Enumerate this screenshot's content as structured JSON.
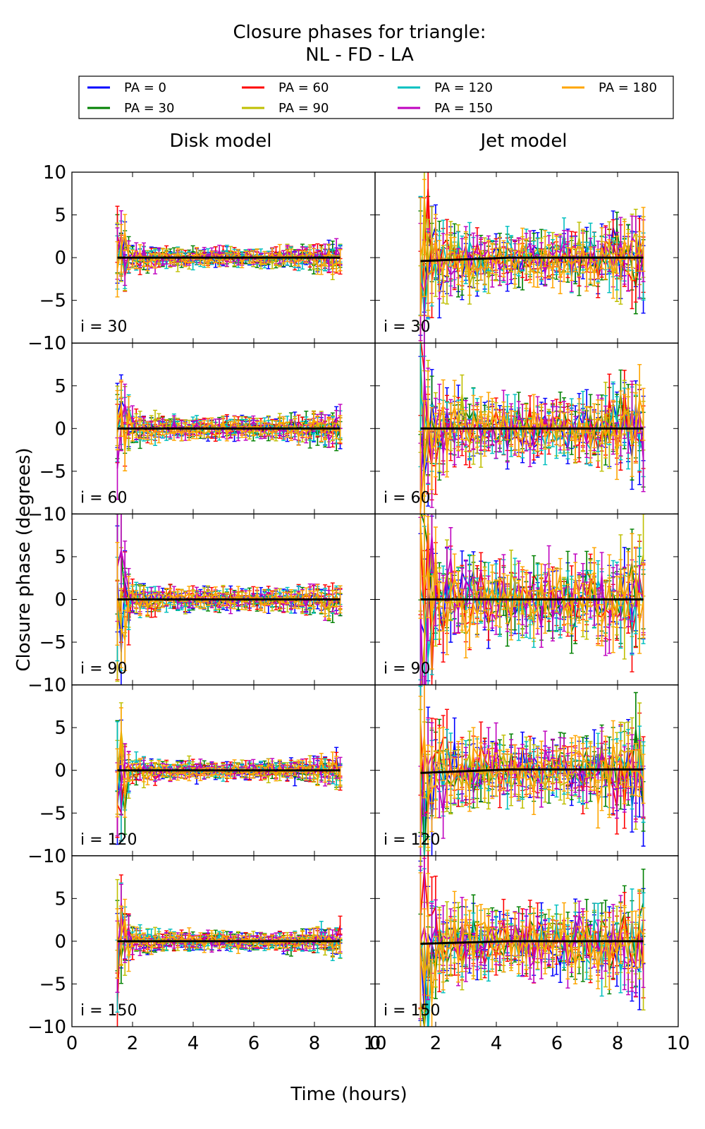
{
  "title_line1": "Closure phases for triangle:",
  "title_line2": "NL - FD - LA",
  "xlabel": "Time (hours)",
  "ylabel": "Closure phase (degrees)",
  "legend": [
    {
      "label": "PA = 0",
      "color": "#0000ff"
    },
    {
      "label": "PA = 30",
      "color": "#008000"
    },
    {
      "label": "PA = 60",
      "color": "#ff0000"
    },
    {
      "label": "PA = 90",
      "color": "#bfbf00"
    },
    {
      "label": "PA = 120",
      "color": "#00bfbf"
    },
    {
      "label": "PA = 150",
      "color": "#bf00bf"
    },
    {
      "label": "PA = 180",
      "color": "#ffa500"
    }
  ],
  "chart_data": {
    "type": "line",
    "title": "Closure phases for triangle: NL - FD - LA",
    "xlabel": "Time (hours)",
    "ylabel": "Closure phase (degrees)",
    "xlim": [
      0,
      10
    ],
    "ylim": [
      -10,
      10
    ],
    "xticks": [
      0,
      2,
      4,
      6,
      8,
      10
    ],
    "yticks": [
      -10,
      -5,
      0,
      5,
      10
    ],
    "time_range": [
      1.5,
      8.85
    ],
    "columns": [
      "Disk model",
      "Jet model"
    ],
    "rows": [
      "i = 30",
      "i = 60",
      "i = 90",
      "i = 120",
      "i = 150"
    ],
    "series_names": [
      "PA = 0",
      "PA = 30",
      "PA = 60",
      "PA = 90",
      "PA = 120",
      "PA = 150",
      "PA = 180"
    ],
    "panels": [
      {
        "column": "Disk model",
        "row": "i = 30",
        "noise": 0.5,
        "start_amp": 3.5,
        "mean": [
          0,
          0
        ]
      },
      {
        "column": "Disk model",
        "row": "i = 60",
        "noise": 0.6,
        "start_amp": 4.0,
        "mean": [
          0,
          0
        ]
      },
      {
        "column": "Disk model",
        "row": "i = 90",
        "noise": 0.6,
        "start_amp": 8.0,
        "mean": [
          0,
          0
        ]
      },
      {
        "column": "Disk model",
        "row": "i = 120",
        "noise": 0.5,
        "start_amp": 5.0,
        "mean": [
          0,
          0
        ]
      },
      {
        "column": "Disk model",
        "row": "i = 150",
        "noise": 0.5,
        "start_amp": 5.0,
        "mean": [
          0,
          0
        ]
      },
      {
        "column": "Jet model",
        "row": "i = 30",
        "noise": 1.5,
        "start_amp": 7.0,
        "mean": [
          -0.4,
          0
        ]
      },
      {
        "column": "Jet model",
        "row": "i = 60",
        "noise": 1.7,
        "start_amp": 9.0,
        "mean": [
          0,
          0
        ]
      },
      {
        "column": "Jet model",
        "row": "i = 90",
        "noise": 2.0,
        "start_amp": 10.0,
        "mean": [
          0,
          0
        ]
      },
      {
        "column": "Jet model",
        "row": "i = 120",
        "noise": 1.8,
        "start_amp": 9.0,
        "mean": [
          -0.3,
          0.1
        ]
      },
      {
        "column": "Jet model",
        "row": "i = 150",
        "noise": 1.8,
        "start_amp": 10.0,
        "mean": [
          -0.3,
          0
        ]
      }
    ]
  }
}
